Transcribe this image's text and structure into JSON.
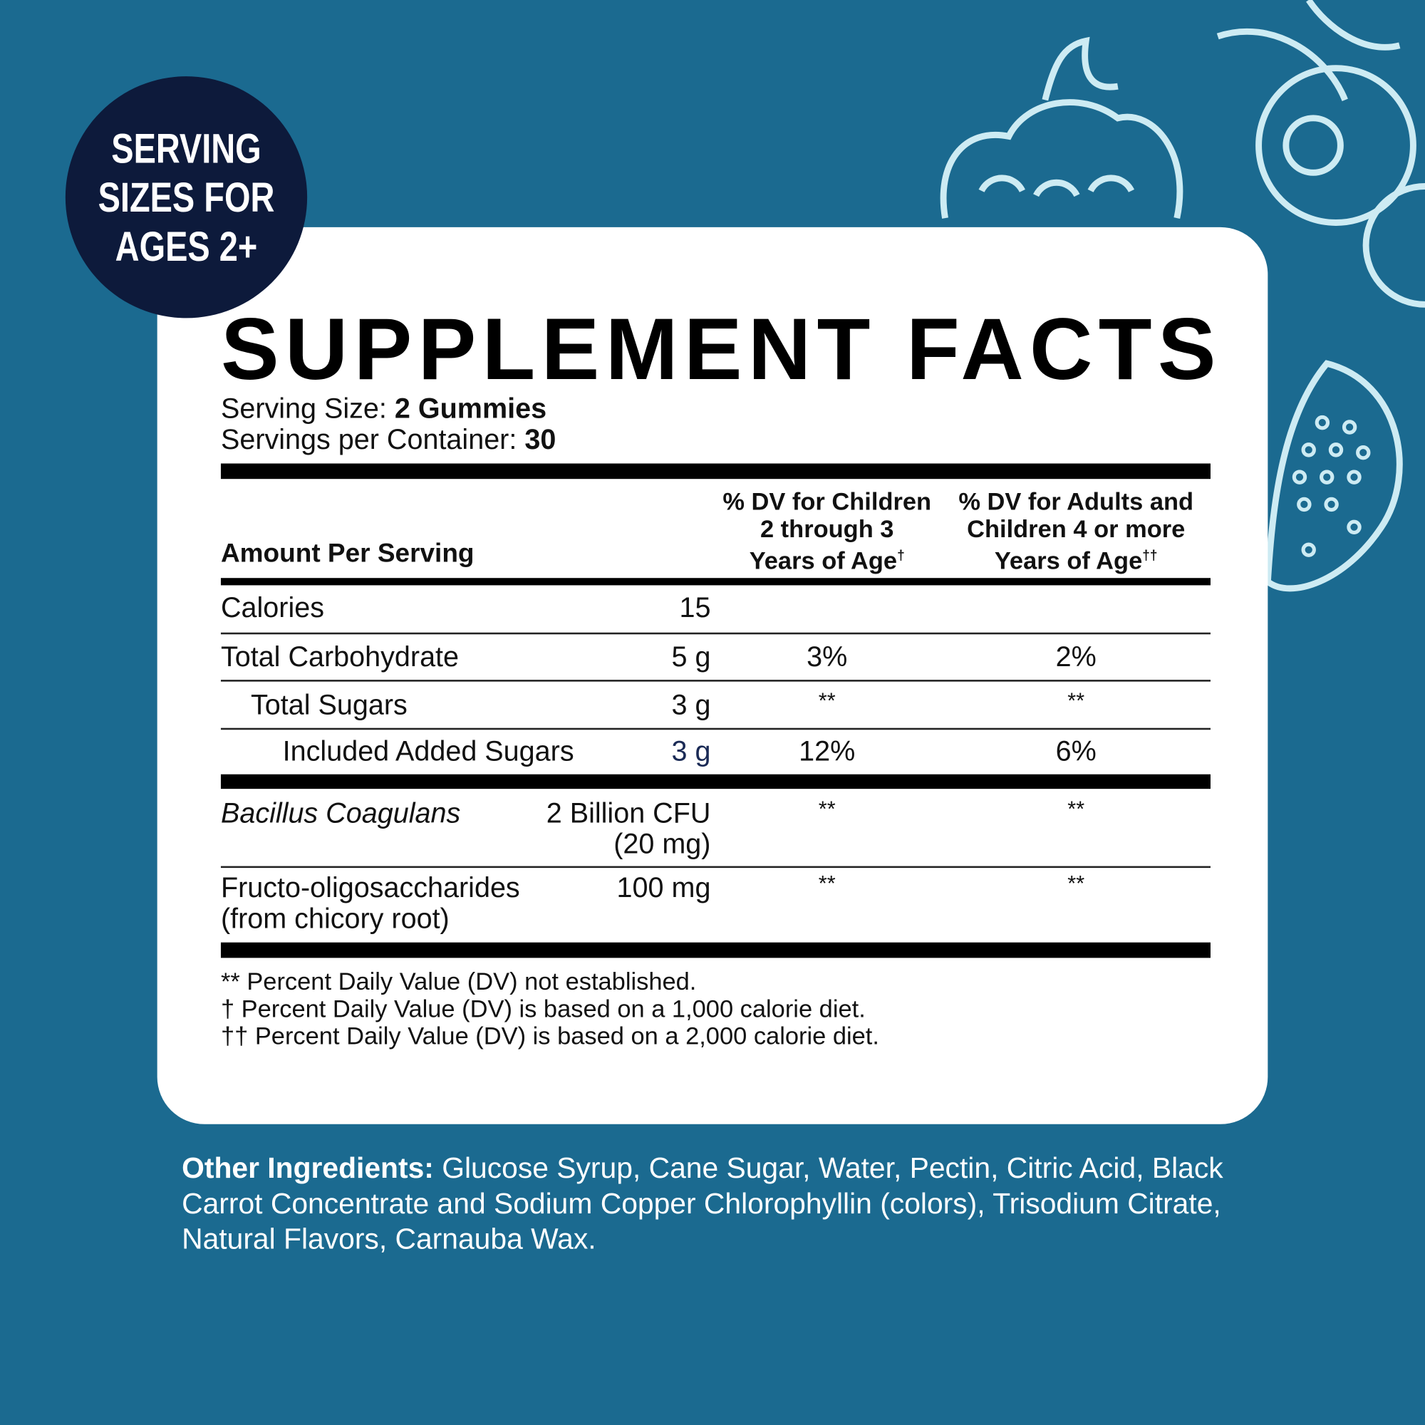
{
  "badge": {
    "lines": [
      "SERVING",
      "SIZES FOR",
      "AGES 2+"
    ]
  },
  "title": "SUPPLEMENT FACTS",
  "serving_size": {
    "label": "Serving Size:",
    "value": "2 Gummies"
  },
  "servings_per_container": {
    "label": "Servings per Container:",
    "value": "30"
  },
  "table": {
    "header": {
      "amount": "Amount Per Serving",
      "dv_children": {
        "lines": [
          "% DV for Children",
          "2 through 3",
          "Years of Age"
        ],
        "mark": "†"
      },
      "dv_adults": {
        "lines": [
          "% DV for Adults and",
          "Children 4 or more",
          "Years of Age"
        ],
        "mark": "††"
      }
    },
    "rows": [
      {
        "name": [
          "Calories"
        ],
        "amount": [
          "15"
        ]
      },
      {
        "name": [
          "Total Carbohydrate"
        ],
        "amount": [
          "5 g"
        ],
        "dv_children": "3%",
        "dv_adults": "2%"
      },
      {
        "name": [
          "Total Sugars"
        ],
        "amount": [
          "3 g"
        ],
        "dv_children": "**",
        "dv_adults": "**"
      },
      {
        "name": [
          "Included Added Sugars"
        ],
        "amount": [
          "3 g"
        ],
        "dv_children": "12%",
        "dv_adults": "6%"
      },
      {
        "name": [
          "Bacillus Coagulans"
        ],
        "amount": [
          "2 Billion CFU",
          "(20 mg)"
        ],
        "dv_children": "**",
        "dv_adults": "**"
      },
      {
        "name": [
          "Fructo-oligosaccharides",
          "(from chicory root)"
        ],
        "amount": [
          "100 mg"
        ],
        "dv_children": "**",
        "dv_adults": "**"
      }
    ]
  },
  "footnotes": [
    "** Percent Daily Value (DV) not established.",
    "† Percent Daily Value (DV) is based on a 1,000 calorie diet.",
    "†† Percent Daily Value (DV) is based on a 2,000 calorie diet."
  ],
  "other_ingredients": {
    "label": "Other Ingredients:",
    "text": "Glucose Syrup, Cane Sugar, Water, Pectin, Citric Acid, Black Carrot Concentrate and Sodium Copper Chlorophyllin (colors), Trisodium Citrate, Natural Flavors, Carnauba Wax."
  }
}
